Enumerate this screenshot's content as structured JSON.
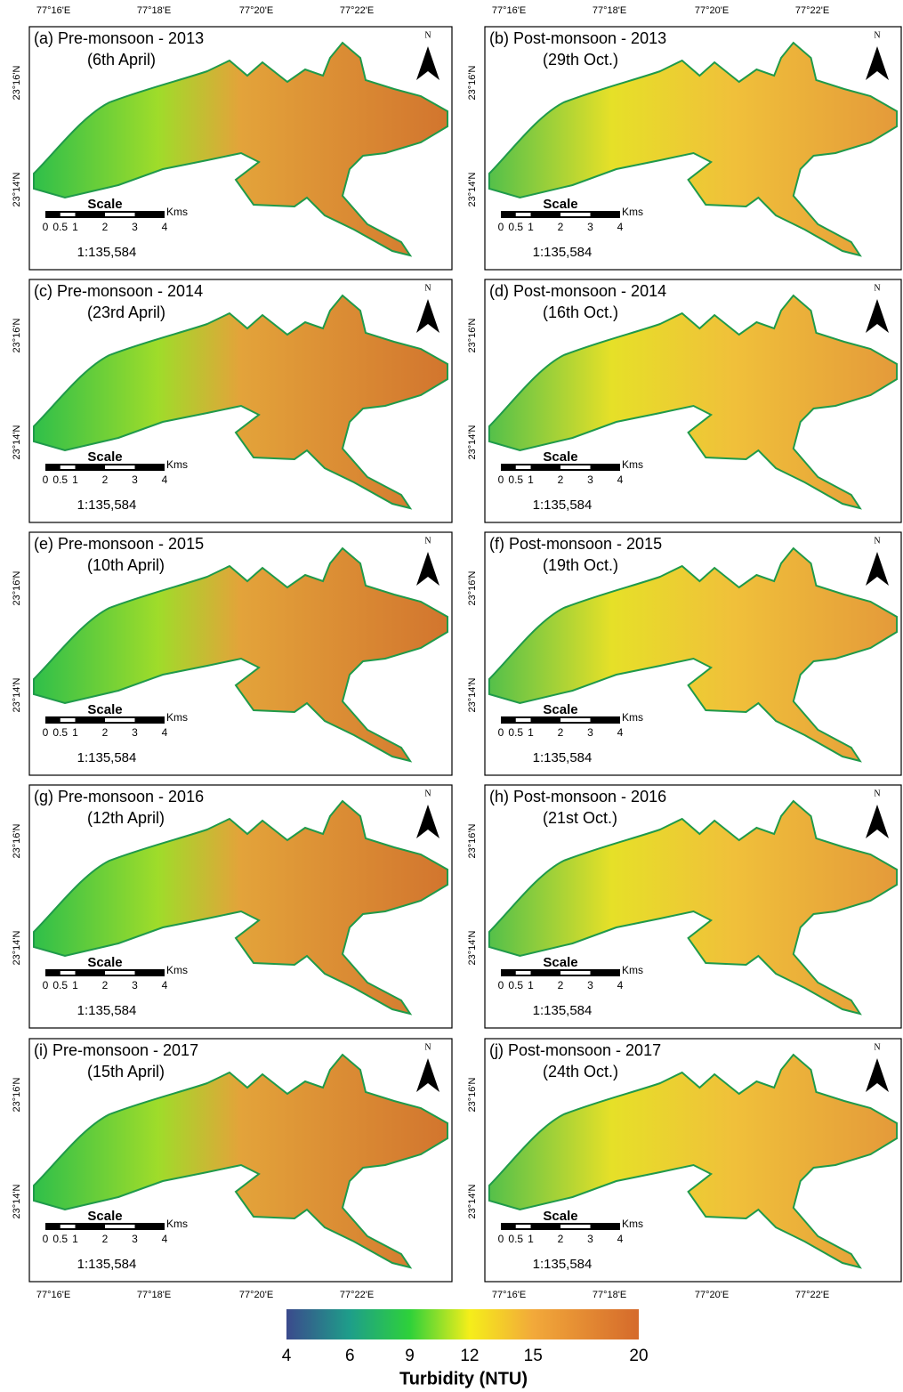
{
  "axes": {
    "lon_labels": [
      "77°16'E",
      "77°18'E",
      "77°20'E",
      "77°22'E"
    ],
    "lat_labels": [
      "23°16'N",
      "23°14'N"
    ]
  },
  "panels": [
    {
      "label": "(a) Pre-monsoon - 2013",
      "date": "(6th April)"
    },
    {
      "label": "(b) Post-monsoon - 2013",
      "date": "(29th Oct.)"
    },
    {
      "label": "(c) Pre-monsoon - 2014",
      "date": "(23rd April)"
    },
    {
      "label": "(d) Post-monsoon - 2014",
      "date": "(16th Oct.)"
    },
    {
      "label": "(e) Pre-monsoon - 2015",
      "date": "(10th April)"
    },
    {
      "label": "(f) Post-monsoon - 2015",
      "date": "(19th Oct.)"
    },
    {
      "label": "(g) Pre-monsoon - 2016",
      "date": "(12th April)"
    },
    {
      "label": "(h) Post-monsoon - 2016",
      "date": "(21st Oct.)"
    },
    {
      "label": "(i) Pre-monsoon - 2017",
      "date": "(15th April)"
    },
    {
      "label": "(j) Post-monsoon - 2017",
      "date": "(24th Oct.)"
    }
  ],
  "north": "N",
  "scale_bar": {
    "title": "Scale",
    "unit": "Kms",
    "ticks": [
      0,
      0.5,
      1,
      2,
      3,
      4
    ],
    "ratio": "1:135,584"
  },
  "colorbar": {
    "title": "Turbidity (NTU)",
    "ticks": [
      4,
      6,
      9,
      12,
      15,
      20
    ],
    "colors": [
      "#3b4a8c",
      "#1e9e8a",
      "#2ed13a",
      "#f5ee1a",
      "#f2a93a",
      "#d56a2b"
    ]
  }
}
